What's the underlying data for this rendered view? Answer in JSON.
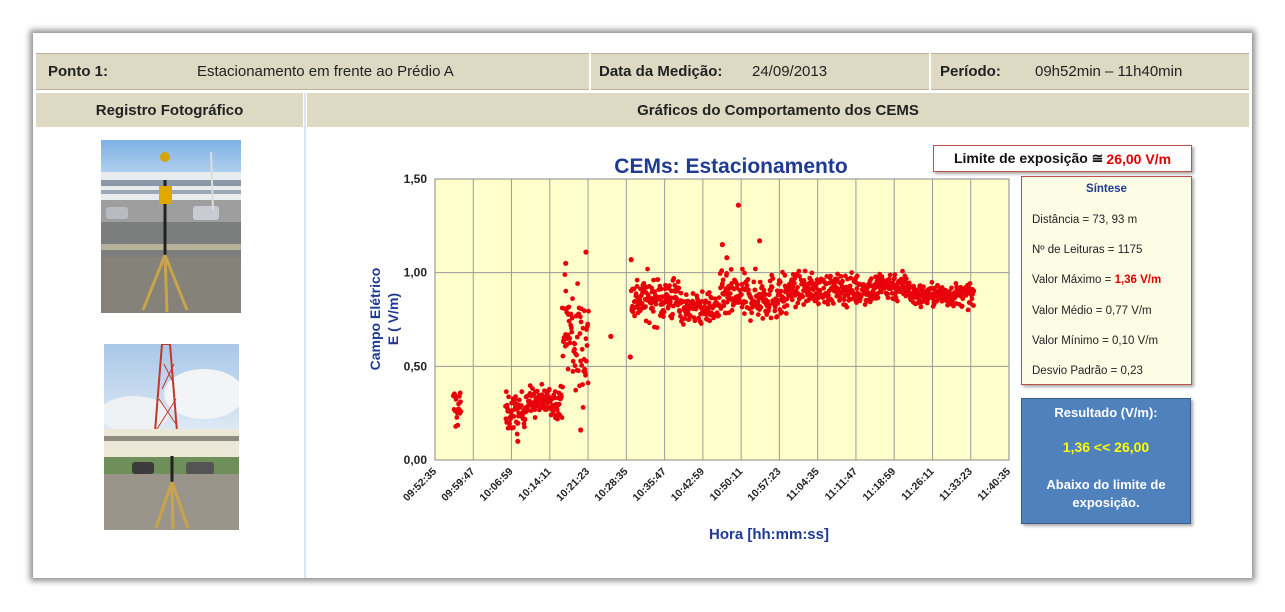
{
  "header": {
    "ponto_label": "Ponto 1:",
    "ponto_value": "Estacionamento em frente ao Prédio A",
    "data_label": "Data da Medição:",
    "data_value": "24/09/2013",
    "periodo_label": "Período:",
    "periodo_value": "09h52min – 11h40min"
  },
  "subheader": {
    "left": "Registro Fotográfico",
    "right": "Gráficos do Comportamento dos CEMS"
  },
  "limite": {
    "label": "Limite de exposição ≅",
    "value": "26,00 V/m"
  },
  "sintese": {
    "title": "Síntese",
    "distancia": "Distância = 73, 93 m",
    "leituras": "Nº de Leituras =  1175",
    "maximo_label": "Valor Máximo = ",
    "maximo_value": "1,36 V/m",
    "medio": "Valor Médio = 0,77 V/m",
    "minimo": "Valor Mínimo = 0,10 V/m",
    "desvio": "Desvio Padrão = 0,23"
  },
  "resultado": {
    "title": "Resultado (V/m):",
    "value": "1,36 << 26,00",
    "text1": "Abaixo do limite de",
    "text2": "exposição."
  },
  "colors": {
    "header_bg": "#ddd9c3",
    "plot_bg": "#ffffcc",
    "point": "#e8000b",
    "title": "#1f3a93",
    "result_bg": "#4f81bd"
  },
  "chart_data": {
    "type": "scatter",
    "title": "CEMs: Estacionamento",
    "xlabel": "Hora [hh:mm:ss]",
    "ylabel_line1": "Campo Elétrico",
    "ylabel_line2": "E  ( V/m)",
    "ylim": [
      0,
      1.5
    ],
    "yticks": [
      "0,00",
      "0,50",
      "1,00",
      "1,50"
    ],
    "xticks": [
      "09:52:35",
      "09:59:47",
      "10:06:59",
      "10:14:11",
      "10:21:23",
      "10:28:35",
      "10:35:47",
      "10:42:59",
      "10:50:11",
      "10:57:23",
      "11:04:35",
      "11:11:47",
      "11:18:59",
      "11:26:11",
      "11:33:23",
      "11:40:35"
    ],
    "grid": true,
    "segments": [
      {
        "start": "09:56:00",
        "end": "09:57:30",
        "center": 0.28,
        "spread": 0.06
      },
      {
        "start": "10:05:50",
        "end": "10:09:30",
        "center": 0.25,
        "spread": 0.05
      },
      {
        "start": "10:09:30",
        "end": "10:16:30",
        "center": 0.31,
        "spread": 0.04
      },
      {
        "start": "10:16:30",
        "end": "10:18:30",
        "center": 0.7,
        "spread": 0.14
      },
      {
        "start": "10:18:30",
        "end": "10:21:30",
        "center": 0.62,
        "spread": 0.15
      },
      {
        "start": "10:29:30",
        "end": "10:39:00",
        "center": 0.86,
        "spread": 0.06
      },
      {
        "start": "10:39:00",
        "end": "10:46:00",
        "center": 0.81,
        "spread": 0.04
      },
      {
        "start": "10:46:00",
        "end": "10:59:00",
        "center": 0.87,
        "spread": 0.06
      },
      {
        "start": "10:59:00",
        "end": "11:16:00",
        "center": 0.91,
        "spread": 0.04
      },
      {
        "start": "11:16:00",
        "end": "11:22:00",
        "center": 0.93,
        "spread": 0.04
      },
      {
        "start": "11:22:00",
        "end": "11:34:00",
        "center": 0.88,
        "spread": 0.03
      }
    ],
    "notable_points": [
      {
        "x": "10:49:40",
        "y": 1.36
      },
      {
        "x": "10:53:40",
        "y": 1.17
      },
      {
        "x": "10:46:40",
        "y": 1.15
      },
      {
        "x": "10:21:00",
        "y": 1.11
      },
      {
        "x": "10:17:10",
        "y": 1.05
      },
      {
        "x": "10:29:30",
        "y": 1.07
      },
      {
        "x": "10:47:30",
        "y": 1.08
      },
      {
        "x": "10:20:00",
        "y": 0.16
      },
      {
        "x": "10:08:10",
        "y": 0.1
      },
      {
        "x": "10:25:40",
        "y": 0.66
      },
      {
        "x": "10:29:20",
        "y": 0.55
      }
    ]
  }
}
